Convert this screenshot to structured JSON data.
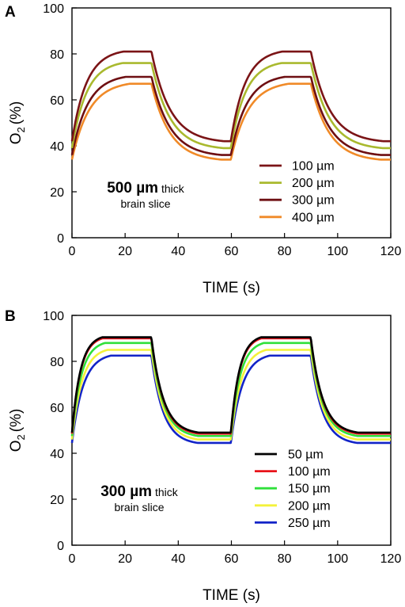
{
  "chart_data": [
    {
      "panel": "A",
      "type": "line",
      "xlabel": "TIME (s)",
      "ylabel_main": "O",
      "ylabel_sub": "2",
      "ylabel_unit": "(%)",
      "xlim": [
        0,
        120
      ],
      "ylim": [
        0,
        100
      ],
      "xticks": [
        "0",
        "20",
        "40",
        "60",
        "80",
        "100",
        "120"
      ],
      "yticks": [
        "0",
        "20",
        "40",
        "60",
        "80",
        "100"
      ],
      "annotation": {
        "bold": "500 µm",
        "normal": " thick",
        "line2": "brain slice"
      },
      "legend_position": "lower-right",
      "series": [
        {
          "name": "100 µm",
          "color": "#7b1416",
          "base": 42,
          "peak": 81,
          "rise_tau": 5.5,
          "decay_tau": 7
        },
        {
          "name": "200 µm",
          "color": "#a9b92e",
          "base": 39,
          "peak": 76,
          "rise_tau": 5.5,
          "decay_tau": 7
        },
        {
          "name": "300 µm",
          "color": "#6e0f12",
          "base": 36,
          "peak": 70,
          "rise_tau": 6,
          "decay_tau": 7
        },
        {
          "name": "400 µm",
          "color": "#f08a28",
          "base": 34,
          "peak": 67,
          "rise_tau": 6.5,
          "decay_tau": 7
        }
      ]
    },
    {
      "panel": "B",
      "type": "line",
      "xlabel": "TIME (s)",
      "ylabel_main": "O",
      "ylabel_sub": "2",
      "ylabel_unit": "(%)",
      "xlim": [
        0,
        120
      ],
      "ylim": [
        0,
        100
      ],
      "xticks": [
        "0",
        "20",
        "40",
        "60",
        "80",
        "100",
        "120"
      ],
      "yticks": [
        "0",
        "20",
        "40",
        "60",
        "80",
        "100"
      ],
      "annotation": {
        "bold": "300 µm",
        "normal": " thick",
        "line2": "brain slice"
      },
      "legend_position": "lower-right",
      "series": [
        {
          "name": "50 µm",
          "color": "#000000",
          "base": 49,
          "peak": 90.5,
          "rise_tau": 3.2,
          "decay_tau": 4.5
        },
        {
          "name": "100 µm",
          "color": "#e8141b",
          "base": 48.5,
          "peak": 90,
          "rise_tau": 3.2,
          "decay_tau": 4.5
        },
        {
          "name": "150 µm",
          "color": "#2fe03a",
          "base": 47.5,
          "peak": 88,
          "rise_tau": 3.5,
          "decay_tau": 4.5
        },
        {
          "name": "200 µm",
          "color": "#f4f23a",
          "base": 46,
          "peak": 85,
          "rise_tau": 3.8,
          "decay_tau": 4.5
        },
        {
          "name": "250 µm",
          "color": "#1224c8",
          "base": 44.5,
          "peak": 82.5,
          "rise_tau": 4.2,
          "decay_tau": 4.5
        }
      ]
    }
  ]
}
